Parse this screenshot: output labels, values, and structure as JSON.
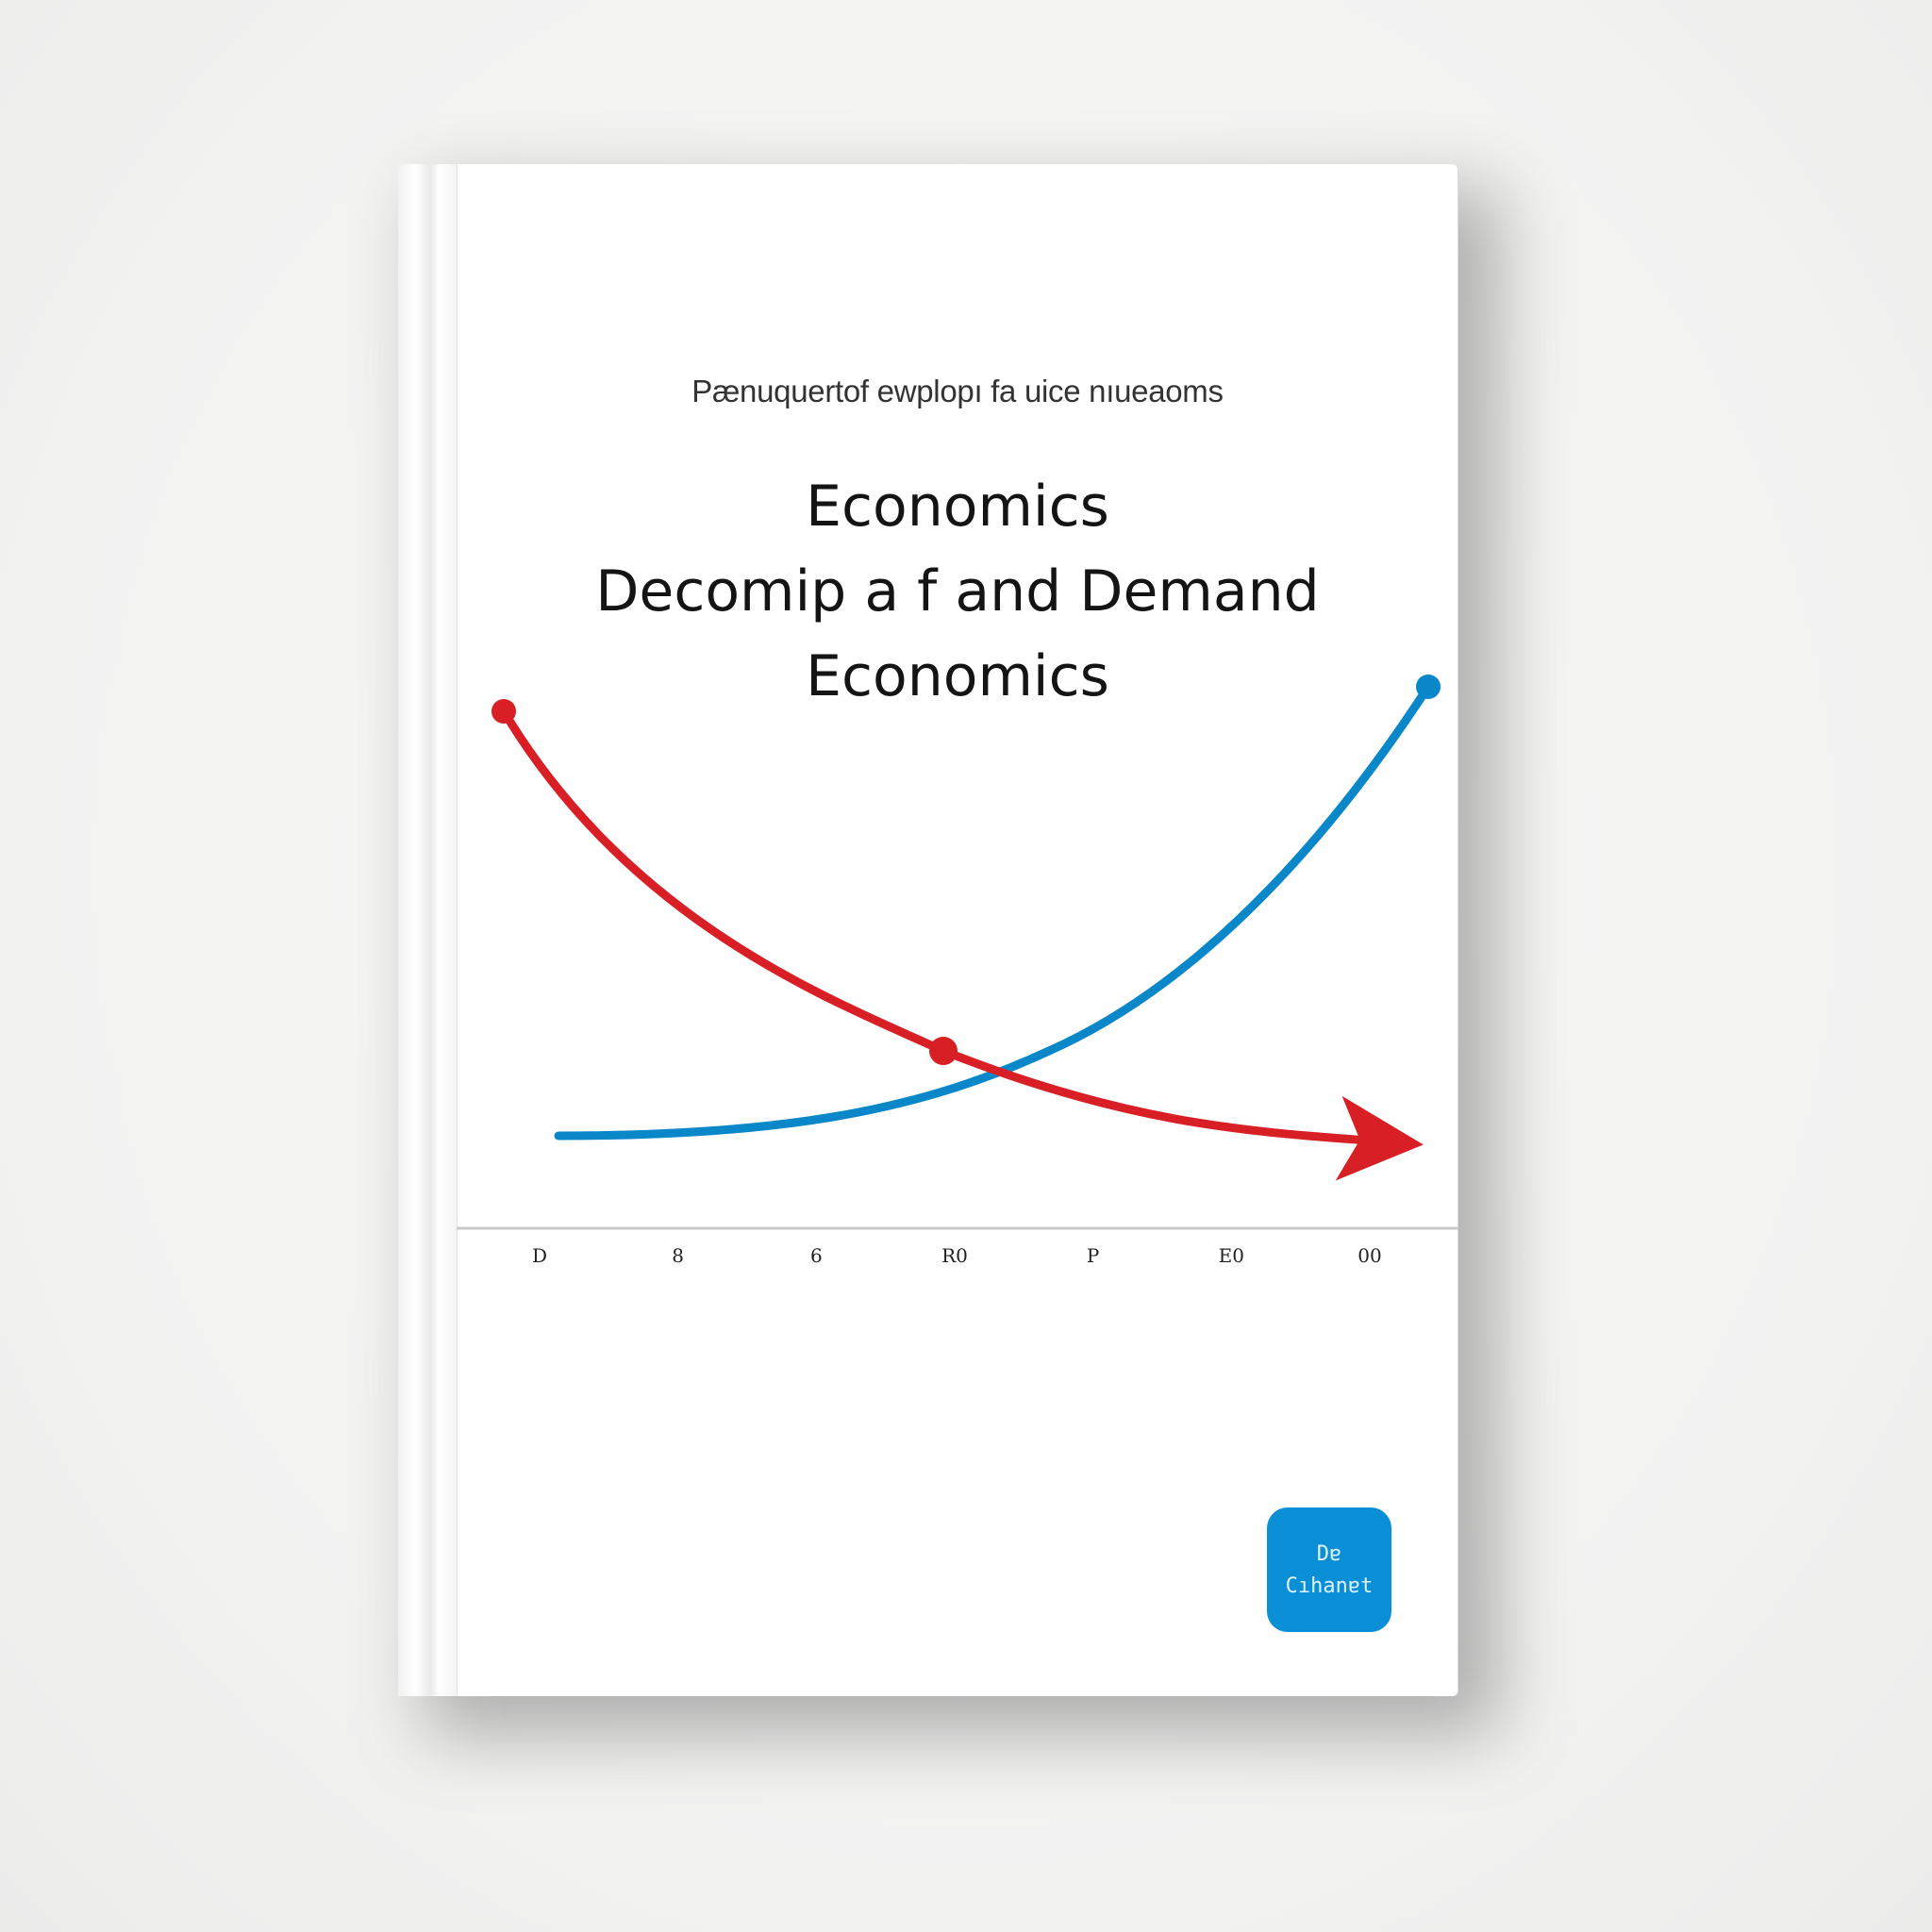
{
  "cover": {
    "subtitle": "Pænuquertof ewplopı fa uice nıueaoms",
    "title_lines": [
      "Economics",
      "Decomip a f and Demand",
      "Economics"
    ]
  },
  "badge": {
    "line1": "Dɐ",
    "line2": "Cıhanɐt"
  },
  "chart_data": {
    "type": "line",
    "tick_labels": [
      "D",
      "8",
      "6",
      "R0",
      "P",
      "E0",
      "00"
    ],
    "series": [
      {
        "color": "#d91f26"
      },
      {
        "color": "#0a87c8"
      }
    ],
    "axis_color": "#c9c9c9"
  }
}
